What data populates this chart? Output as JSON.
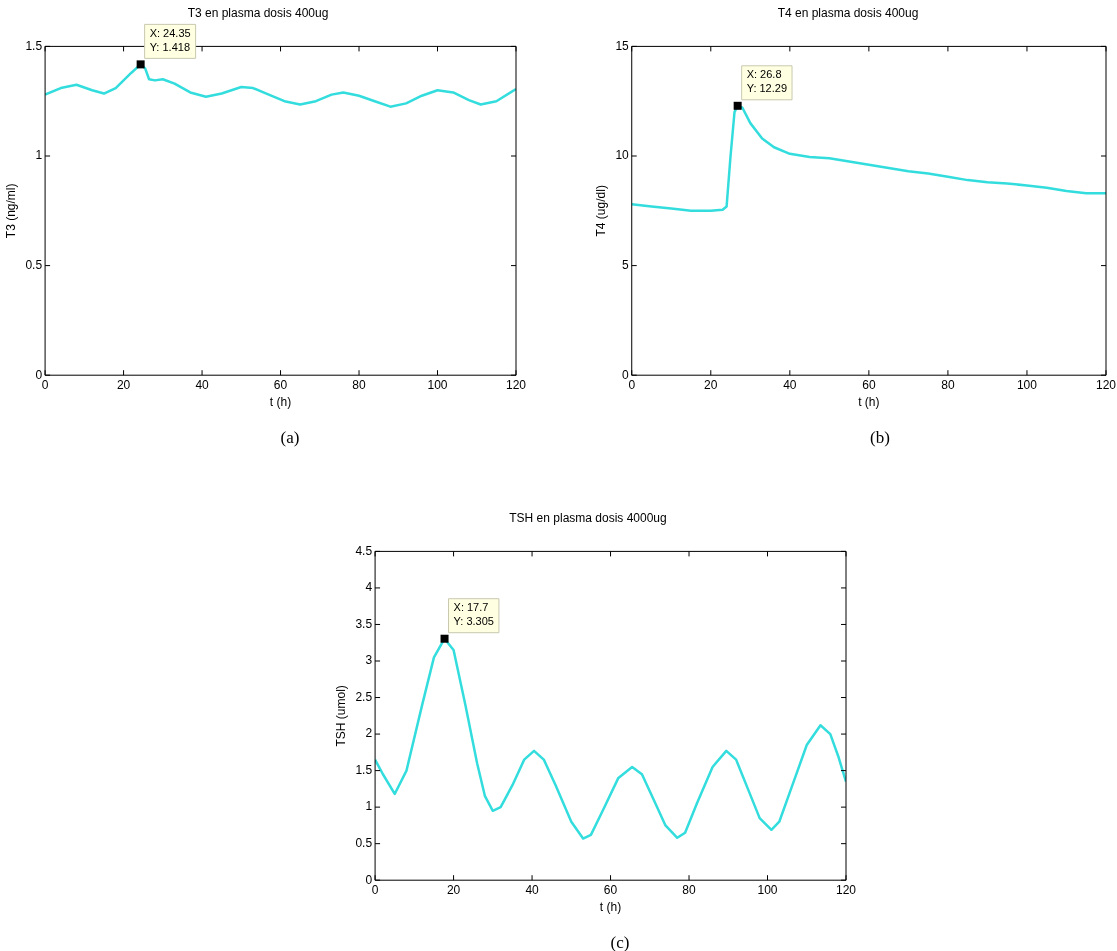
{
  "chart_data": [
    {
      "type": "line",
      "title": "T3 en plasma dosis 400ug",
      "xlabel": "t (h)",
      "ylabel": "T3 (ng/ml)",
      "marker": "none",
      "grid": false,
      "xlim": [
        0,
        120
      ],
      "xticks": [
        0,
        20,
        40,
        60,
        80,
        100,
        120
      ],
      "ylim": [
        0,
        1.5
      ],
      "yticks": [
        0,
        0.5,
        1,
        1.5
      ],
      "x": [
        0,
        4,
        8,
        12,
        15,
        18,
        22,
        24.35,
        25.5,
        26.5,
        28,
        30,
        33,
        37,
        41,
        45,
        50,
        53,
        57,
        61,
        65,
        69,
        73,
        76,
        80,
        84,
        88,
        92,
        96,
        100,
        104,
        108,
        111,
        115,
        120
      ],
      "series": [
        {
          "color": "#33dddd",
          "values": [
            1.28,
            1.31,
            1.325,
            1.3,
            1.285,
            1.31,
            1.38,
            1.418,
            1.4,
            1.35,
            1.345,
            1.35,
            1.33,
            1.29,
            1.27,
            1.285,
            1.315,
            1.31,
            1.28,
            1.25,
            1.235,
            1.25,
            1.28,
            1.29,
            1.275,
            1.25,
            1.225,
            1.24,
            1.275,
            1.3,
            1.29,
            1.255,
            1.235,
            1.25,
            1.305
          ]
        }
      ],
      "annotations": [
        {
          "text": "X: 24.35\nY: 1.418",
          "x": 24.35,
          "y": 1.418
        },
        "(a)"
      ]
    },
    {
      "type": "line",
      "title": "T4 en plasma dosis 400ug",
      "xlabel": "t (h)",
      "ylabel": "T4 (ug/dl)",
      "marker": "none",
      "grid": false,
      "xlim": [
        0,
        120
      ],
      "xticks": [
        0,
        20,
        40,
        60,
        80,
        100,
        120
      ],
      "ylim": [
        0,
        15
      ],
      "yticks": [
        0,
        5,
        10,
        15
      ],
      "x": [
        0,
        5,
        10,
        15,
        20,
        23,
        24,
        25,
        26,
        26.8,
        28,
        30,
        33,
        36,
        40,
        45,
        50,
        55,
        60,
        65,
        70,
        75,
        80,
        85,
        90,
        95,
        100,
        105,
        110,
        115,
        120
      ],
      "series": [
        {
          "color": "#33dddd",
          "values": [
            7.8,
            7.7,
            7.6,
            7.5,
            7.5,
            7.55,
            7.7,
            10,
            12,
            12.29,
            12.2,
            11.5,
            10.8,
            10.4,
            10.1,
            9.95,
            9.9,
            9.75,
            9.6,
            9.45,
            9.3,
            9.2,
            9.05,
            8.9,
            8.8,
            8.75,
            8.65,
            8.55,
            8.4,
            8.3,
            8.3
          ]
        }
      ],
      "annotations": [
        {
          "text": "X: 26.8\nY: 12.29",
          "x": 26.8,
          "y": 12.29
        },
        "(b)"
      ]
    },
    {
      "type": "line",
      "title": "TSH en plasma dosis 4000ug",
      "xlabel": "t (h)",
      "ylabel": "TSH (umol)",
      "marker": "none",
      "grid": false,
      "xlim": [
        0,
        120
      ],
      "xticks": [
        0,
        20,
        40,
        60,
        80,
        100,
        120
      ],
      "ylim": [
        0,
        4.5
      ],
      "yticks": [
        0,
        0.5,
        1,
        1.5,
        2,
        2.5,
        3,
        3.5,
        4,
        4.5
      ],
      "x": [
        0,
        2,
        5,
        8,
        12,
        15,
        17.7,
        20,
        23,
        26,
        28,
        30,
        32,
        35,
        38,
        40.5,
        43,
        46,
        50,
        53,
        55,
        58,
        62,
        65.5,
        68,
        71,
        74,
        77,
        79,
        82,
        86,
        89.5,
        92,
        95,
        98,
        101,
        103,
        106,
        110,
        113.5,
        116,
        118,
        120
      ],
      "series": [
        {
          "color": "#33dddd",
          "values": [
            1.65,
            1.45,
            1.18,
            1.5,
            2.4,
            3.05,
            3.305,
            3.15,
            2.4,
            1.6,
            1.15,
            0.95,
            1.0,
            1.3,
            1.65,
            1.77,
            1.65,
            1.3,
            0.8,
            0.57,
            0.62,
            0.95,
            1.4,
            1.55,
            1.45,
            1.1,
            0.75,
            0.58,
            0.65,
            1.05,
            1.55,
            1.77,
            1.65,
            1.25,
            0.85,
            0.69,
            0.8,
            1.25,
            1.85,
            2.12,
            2.0,
            1.7,
            1.35
          ]
        }
      ],
      "annotations": [
        {
          "text": "X: 17.7\nY: 3.305",
          "x": 17.7,
          "y": 3.305
        },
        "(c)"
      ]
    }
  ]
}
